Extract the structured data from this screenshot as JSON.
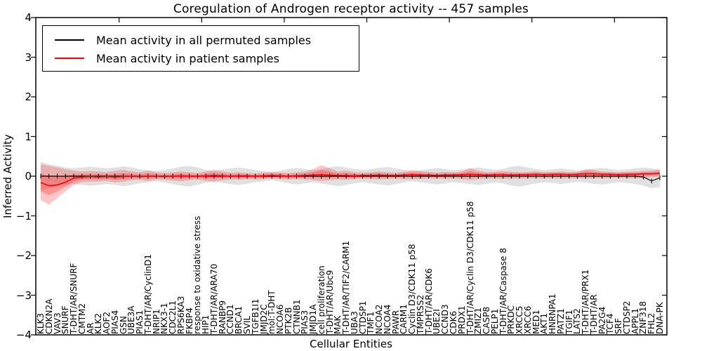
{
  "figure": {
    "title": "Coregulation of Androgen receptor activity -- 457 samples",
    "xlabel": "Cellular Entities",
    "ylabel": "Inferred Activity",
    "background_color": "#ffffff",
    "frame_color": "#000000"
  },
  "legend": {
    "items": [
      {
        "label": "Mean activity in all permuted samples",
        "color": "#000000"
      },
      {
        "label": "Mean activity in patient samples",
        "color": "#ff0000"
      }
    ]
  },
  "chart_data": {
    "type": "line",
    "title": "Coregulation of Androgen receptor activity -- 457 samples",
    "xlabel": "Cellular Entities",
    "ylabel": "Inferred Activity",
    "ylim": [
      -4,
      4
    ],
    "yticks": [
      -4,
      -3,
      -2,
      -1,
      0,
      1,
      2,
      3,
      4
    ],
    "grid": false,
    "legend_position": "upper left",
    "band_colors": {
      "permuted": "#000000",
      "patient": "#ff0000"
    },
    "categories": [
      "KLK3",
      "CDKN2A",
      "VAV3",
      "SNURF",
      "T-DHT/AR/SNURF",
      "CMTM2",
      "AR",
      "KLK2",
      "AOF2",
      "PIAS4",
      "GSN",
      "UBE3A",
      "PIAS1",
      "T-DHT/AR/CyclinD1",
      "NRIP1",
      "NKX3-1",
      "CDC2L1",
      "RPS6KA3",
      "FKBP4",
      "response to oxidative stress",
      "HIP1",
      "T-DHT/AR/ARA70",
      "RANBP9",
      "CCND1",
      "BRCA1",
      "SVIL",
      "TGFB1I1",
      "JMJD2C",
      "mol:T-DHT",
      "NCOA6",
      "PTK2B",
      "CTNNB1",
      "PIAS3",
      "JMJD1A",
      "cell proliferation",
      "T-DHT/AR/Ubc9",
      "MAK",
      "T-DHT/AR/TIF2/CARM1",
      "UBA3",
      "CTDSP1",
      "TMF1",
      "NCOA2",
      "NCOA4",
      "PAWR",
      "CARM1",
      "Cyclin D3/CDK11 p58",
      "TMPRSS2",
      "T-DHT/AR/CDK6",
      "UBE2I",
      "CCND3",
      "CDK6",
      "PRDX1",
      "T-DHT/AR/Cyclin D3/CDK11 p58",
      "ZMIZ1",
      "CASP8",
      "PELP1",
      "T-DHT/AR/Caspase 8",
      "PRKDC",
      "XRCC5",
      "XRCC6",
      "MED1",
      "AKT1",
      "HNRNPA1",
      "PATZ1",
      "TGIF1",
      "LATS2",
      "T-DHT/AR/PRX1",
      "T-DHT/AR",
      "PA2G4",
      "TCF4",
      "SRF",
      "CTDSP2",
      "APPL1",
      "ZNF318",
      "FHL2",
      "DNA-PK"
    ],
    "series": [
      {
        "name": "Mean activity in all permuted samples",
        "color": "#000000",
        "marker": "|",
        "values": [
          0,
          0,
          0,
          0,
          0,
          0,
          0,
          0,
          0,
          0,
          0,
          0,
          0,
          0,
          0,
          0,
          0,
          0,
          0,
          0,
          0,
          0,
          0,
          0,
          0,
          0,
          0,
          0,
          0,
          0,
          0,
          0,
          0,
          0,
          0,
          0,
          0,
          0,
          0,
          0,
          0,
          0,
          0,
          0,
          0,
          0,
          0,
          0,
          0,
          0,
          0,
          0,
          0,
          0,
          0,
          0,
          0,
          0,
          0,
          0,
          0,
          0,
          0,
          0,
          0,
          0,
          0,
          0,
          0,
          0,
          0,
          0,
          0,
          -0.02,
          -0.12,
          -0.04
        ],
        "band_upper": [
          0.36,
          0.3,
          0.26,
          0.22,
          0.2,
          0.22,
          0.24,
          0.22,
          0.2,
          0.22,
          0.25,
          0.22,
          0.18,
          0.15,
          0.13,
          0.16,
          0.2,
          0.24,
          0.26,
          0.22,
          0.16,
          0.14,
          0.17,
          0.2,
          0.22,
          0.19,
          0.15,
          0.13,
          0.1,
          0.14,
          0.18,
          0.21,
          0.18,
          0.15,
          0.18,
          0.22,
          0.25,
          0.22,
          0.18,
          0.15,
          0.18,
          0.21,
          0.23,
          0.2,
          0.16,
          0.13,
          0.15,
          0.18,
          0.21,
          0.18,
          0.15,
          0.17,
          0.2,
          0.22,
          0.19,
          0.16,
          0.18,
          0.24,
          0.26,
          0.22,
          0.18,
          0.15,
          0.17,
          0.2,
          0.17,
          0.14,
          0.16,
          0.19,
          0.21,
          0.18,
          0.15,
          0.17,
          0.2,
          0.22,
          0.2,
          0.16
        ],
        "band_lower": [
          -0.36,
          -0.3,
          -0.26,
          -0.22,
          -0.2,
          -0.22,
          -0.24,
          -0.22,
          -0.2,
          -0.22,
          -0.25,
          -0.22,
          -0.18,
          -0.15,
          -0.13,
          -0.16,
          -0.2,
          -0.24,
          -0.26,
          -0.22,
          -0.16,
          -0.14,
          -0.17,
          -0.2,
          -0.22,
          -0.19,
          -0.15,
          -0.13,
          -0.1,
          -0.14,
          -0.18,
          -0.21,
          -0.18,
          -0.15,
          -0.18,
          -0.22,
          -0.25,
          -0.22,
          -0.18,
          -0.15,
          -0.18,
          -0.21,
          -0.23,
          -0.2,
          -0.16,
          -0.13,
          -0.15,
          -0.18,
          -0.21,
          -0.18,
          -0.15,
          -0.17,
          -0.2,
          -0.22,
          -0.19,
          -0.16,
          -0.18,
          -0.24,
          -0.26,
          -0.22,
          -0.18,
          -0.15,
          -0.17,
          -0.2,
          -0.17,
          -0.14,
          -0.16,
          -0.19,
          -0.21,
          -0.18,
          -0.15,
          -0.17,
          -0.2,
          -0.24,
          -0.3,
          -0.28
        ]
      },
      {
        "name": "Mean activity in patient samples",
        "color": "#ff0000",
        "marker": "none",
        "values": [
          -0.16,
          -0.24,
          -0.22,
          -0.15,
          -0.05,
          -0.02,
          -0.01,
          -0.02,
          -0.01,
          -0.02,
          -0.01,
          0.0,
          -0.01,
          0.0,
          0.0,
          -0.01,
          0.0,
          0.01,
          0.0,
          0.0,
          0.01,
          0.02,
          0.01,
          0.0,
          0.01,
          0.01,
          0.0,
          0.01,
          0.02,
          0.01,
          0.0,
          0.01,
          0.02,
          0.03,
          0.04,
          0.03,
          0.02,
          0.02,
          0.01,
          0.02,
          0.02,
          0.03,
          0.02,
          0.02,
          0.03,
          0.04,
          0.03,
          0.03,
          0.02,
          0.03,
          0.03,
          0.04,
          0.05,
          0.04,
          0.03,
          0.04,
          0.04,
          0.03,
          0.04,
          0.04,
          0.05,
          0.04,
          0.05,
          0.05,
          0.04,
          0.05,
          0.06,
          0.06,
          0.05,
          0.05,
          0.04,
          0.05,
          0.05,
          0.06,
          0.06,
          0.07
        ],
        "band_upper": [
          0.3,
          0.26,
          0.22,
          0.18,
          0.14,
          0.12,
          0.13,
          0.12,
          0.1,
          0.14,
          0.16,
          0.12,
          0.1,
          0.14,
          0.1,
          0.08,
          0.1,
          0.12,
          0.1,
          0.08,
          0.12,
          0.16,
          0.12,
          0.09,
          0.1,
          0.08,
          0.07,
          0.09,
          0.11,
          0.09,
          0.08,
          0.1,
          0.12,
          0.18,
          0.28,
          0.2,
          0.12,
          0.14,
          0.1,
          0.09,
          0.1,
          0.12,
          0.1,
          0.09,
          0.11,
          0.15,
          0.13,
          0.11,
          0.09,
          0.11,
          0.1,
          0.12,
          0.2,
          0.14,
          0.1,
          0.11,
          0.13,
          0.11,
          0.1,
          0.11,
          0.12,
          0.1,
          0.11,
          0.12,
          0.1,
          0.11,
          0.18,
          0.16,
          0.12,
          0.11,
          0.1,
          0.11,
          0.12,
          0.13,
          0.14,
          0.18
        ],
        "band_lower": [
          -0.6,
          -0.72,
          -0.55,
          -0.38,
          -0.22,
          -0.15,
          -0.14,
          -0.13,
          -0.12,
          -0.16,
          -0.14,
          -0.1,
          -0.09,
          -0.12,
          -0.08,
          -0.09,
          -0.11,
          -0.13,
          -0.1,
          -0.08,
          -0.12,
          -0.14,
          -0.1,
          -0.08,
          -0.09,
          -0.07,
          -0.08,
          -0.07,
          -0.06,
          -0.07,
          -0.08,
          -0.07,
          -0.08,
          -0.1,
          -0.12,
          -0.1,
          -0.08,
          -0.09,
          -0.07,
          -0.06,
          -0.07,
          -0.08,
          -0.07,
          -0.06,
          -0.07,
          -0.08,
          -0.07,
          -0.06,
          -0.06,
          -0.07,
          -0.06,
          -0.07,
          -0.1,
          -0.07,
          -0.06,
          -0.06,
          -0.07,
          -0.06,
          -0.06,
          -0.06,
          -0.05,
          -0.05,
          -0.05,
          -0.06,
          -0.05,
          -0.05,
          -0.06,
          -0.06,
          -0.05,
          -0.05,
          -0.04,
          -0.05,
          -0.05,
          -0.05,
          -0.02,
          -0.02
        ]
      }
    ]
  }
}
